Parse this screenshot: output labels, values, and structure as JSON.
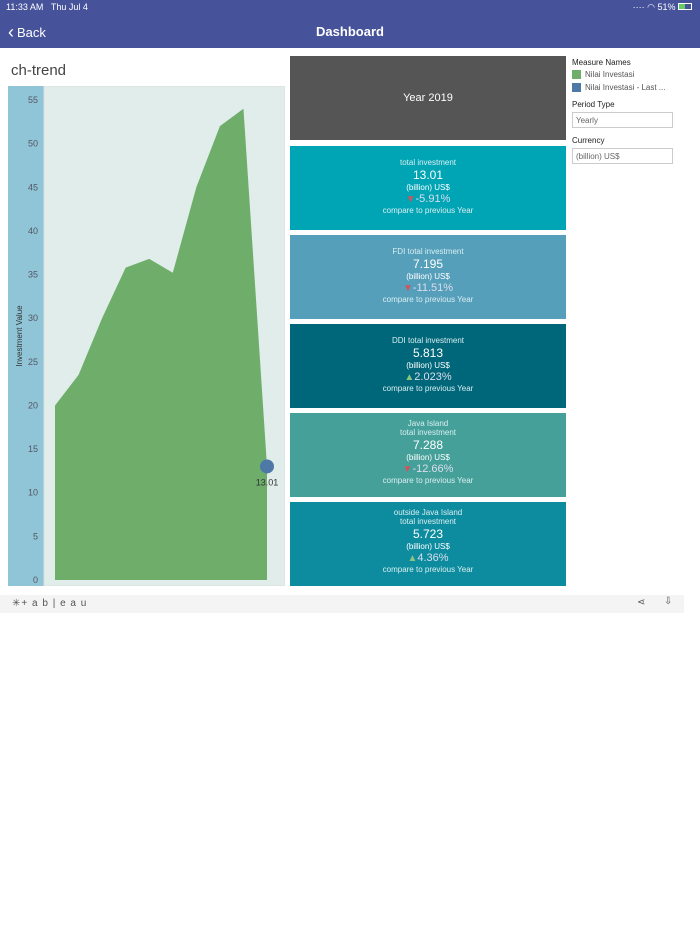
{
  "status": {
    "time": "11:33 AM",
    "date": "Thu Jul 4",
    "battery": "51%"
  },
  "nav": {
    "back": "Back",
    "title": "Dashboard"
  },
  "chart_title": "ch-trend",
  "chart_data": {
    "type": "area",
    "ylabel": "Investment Value",
    "ylim": [
      0,
      57
    ],
    "yticks": [
      0,
      5,
      10,
      15,
      20,
      25,
      30,
      35,
      40,
      45,
      50,
      55
    ],
    "series": [
      {
        "name": "Nilai Investasi",
        "color": "#6EAD6A",
        "values": [
          20,
          23.5,
          30,
          35.8,
          36.8,
          35.2,
          45,
          52,
          54,
          13.01
        ]
      }
    ],
    "highlight": {
      "name": "Nilai Investasi - Last ...",
      "value": 13.01,
      "label": "13.01",
      "color": "#4E79A7"
    }
  },
  "year_card": "Year 2019",
  "cards": [
    {
      "label": "total investment",
      "label2": "",
      "value": "13.01",
      "unit": "(billion) US$",
      "change": "-5.91%",
      "dir": "down",
      "compare": "compare to previous Year",
      "color": "#00A5B5"
    },
    {
      "label": "FDI total investment",
      "label2": "",
      "value": "7.195",
      "unit": "(billion) US$",
      "change": "-11.51%",
      "dir": "down",
      "compare": "compare to previous Year",
      "color": "#559FBB"
    },
    {
      "label": "DDI total investment",
      "label2": "",
      "value": "5.813",
      "unit": "(billion) US$",
      "change": "2.023%",
      "dir": "up",
      "compare": "compare to previous  Year",
      "color": "#00677A"
    },
    {
      "label": "Java Island",
      "label2": "total investment",
      "value": "7.288",
      "unit": "(billion) US$",
      "change": "-12.66%",
      "dir": "down",
      "compare": "compare to previous Year",
      "color": "#45A09A"
    },
    {
      "label": "outside Java Island",
      "label2": "total investment",
      "value": "5.723",
      "unit": "(billion) US$",
      "change": "4.36%",
      "dir": "up",
      "compare": "compare to previous Year",
      "color": "#0E8C9F"
    }
  ],
  "legend": {
    "title": "Measure Names",
    "items": [
      {
        "label": "Nilai Investasi",
        "color": "#6EAD6A"
      },
      {
        "label": "Nilai Investasi - Last ...",
        "color": "#4E79A7"
      }
    ]
  },
  "filters": {
    "period_label": "Period Type",
    "period_value": "Yearly",
    "currency_label": "Currency",
    "currency_value": "(billion) US$"
  },
  "footer": {
    "logo": "+ a b | e a u"
  }
}
